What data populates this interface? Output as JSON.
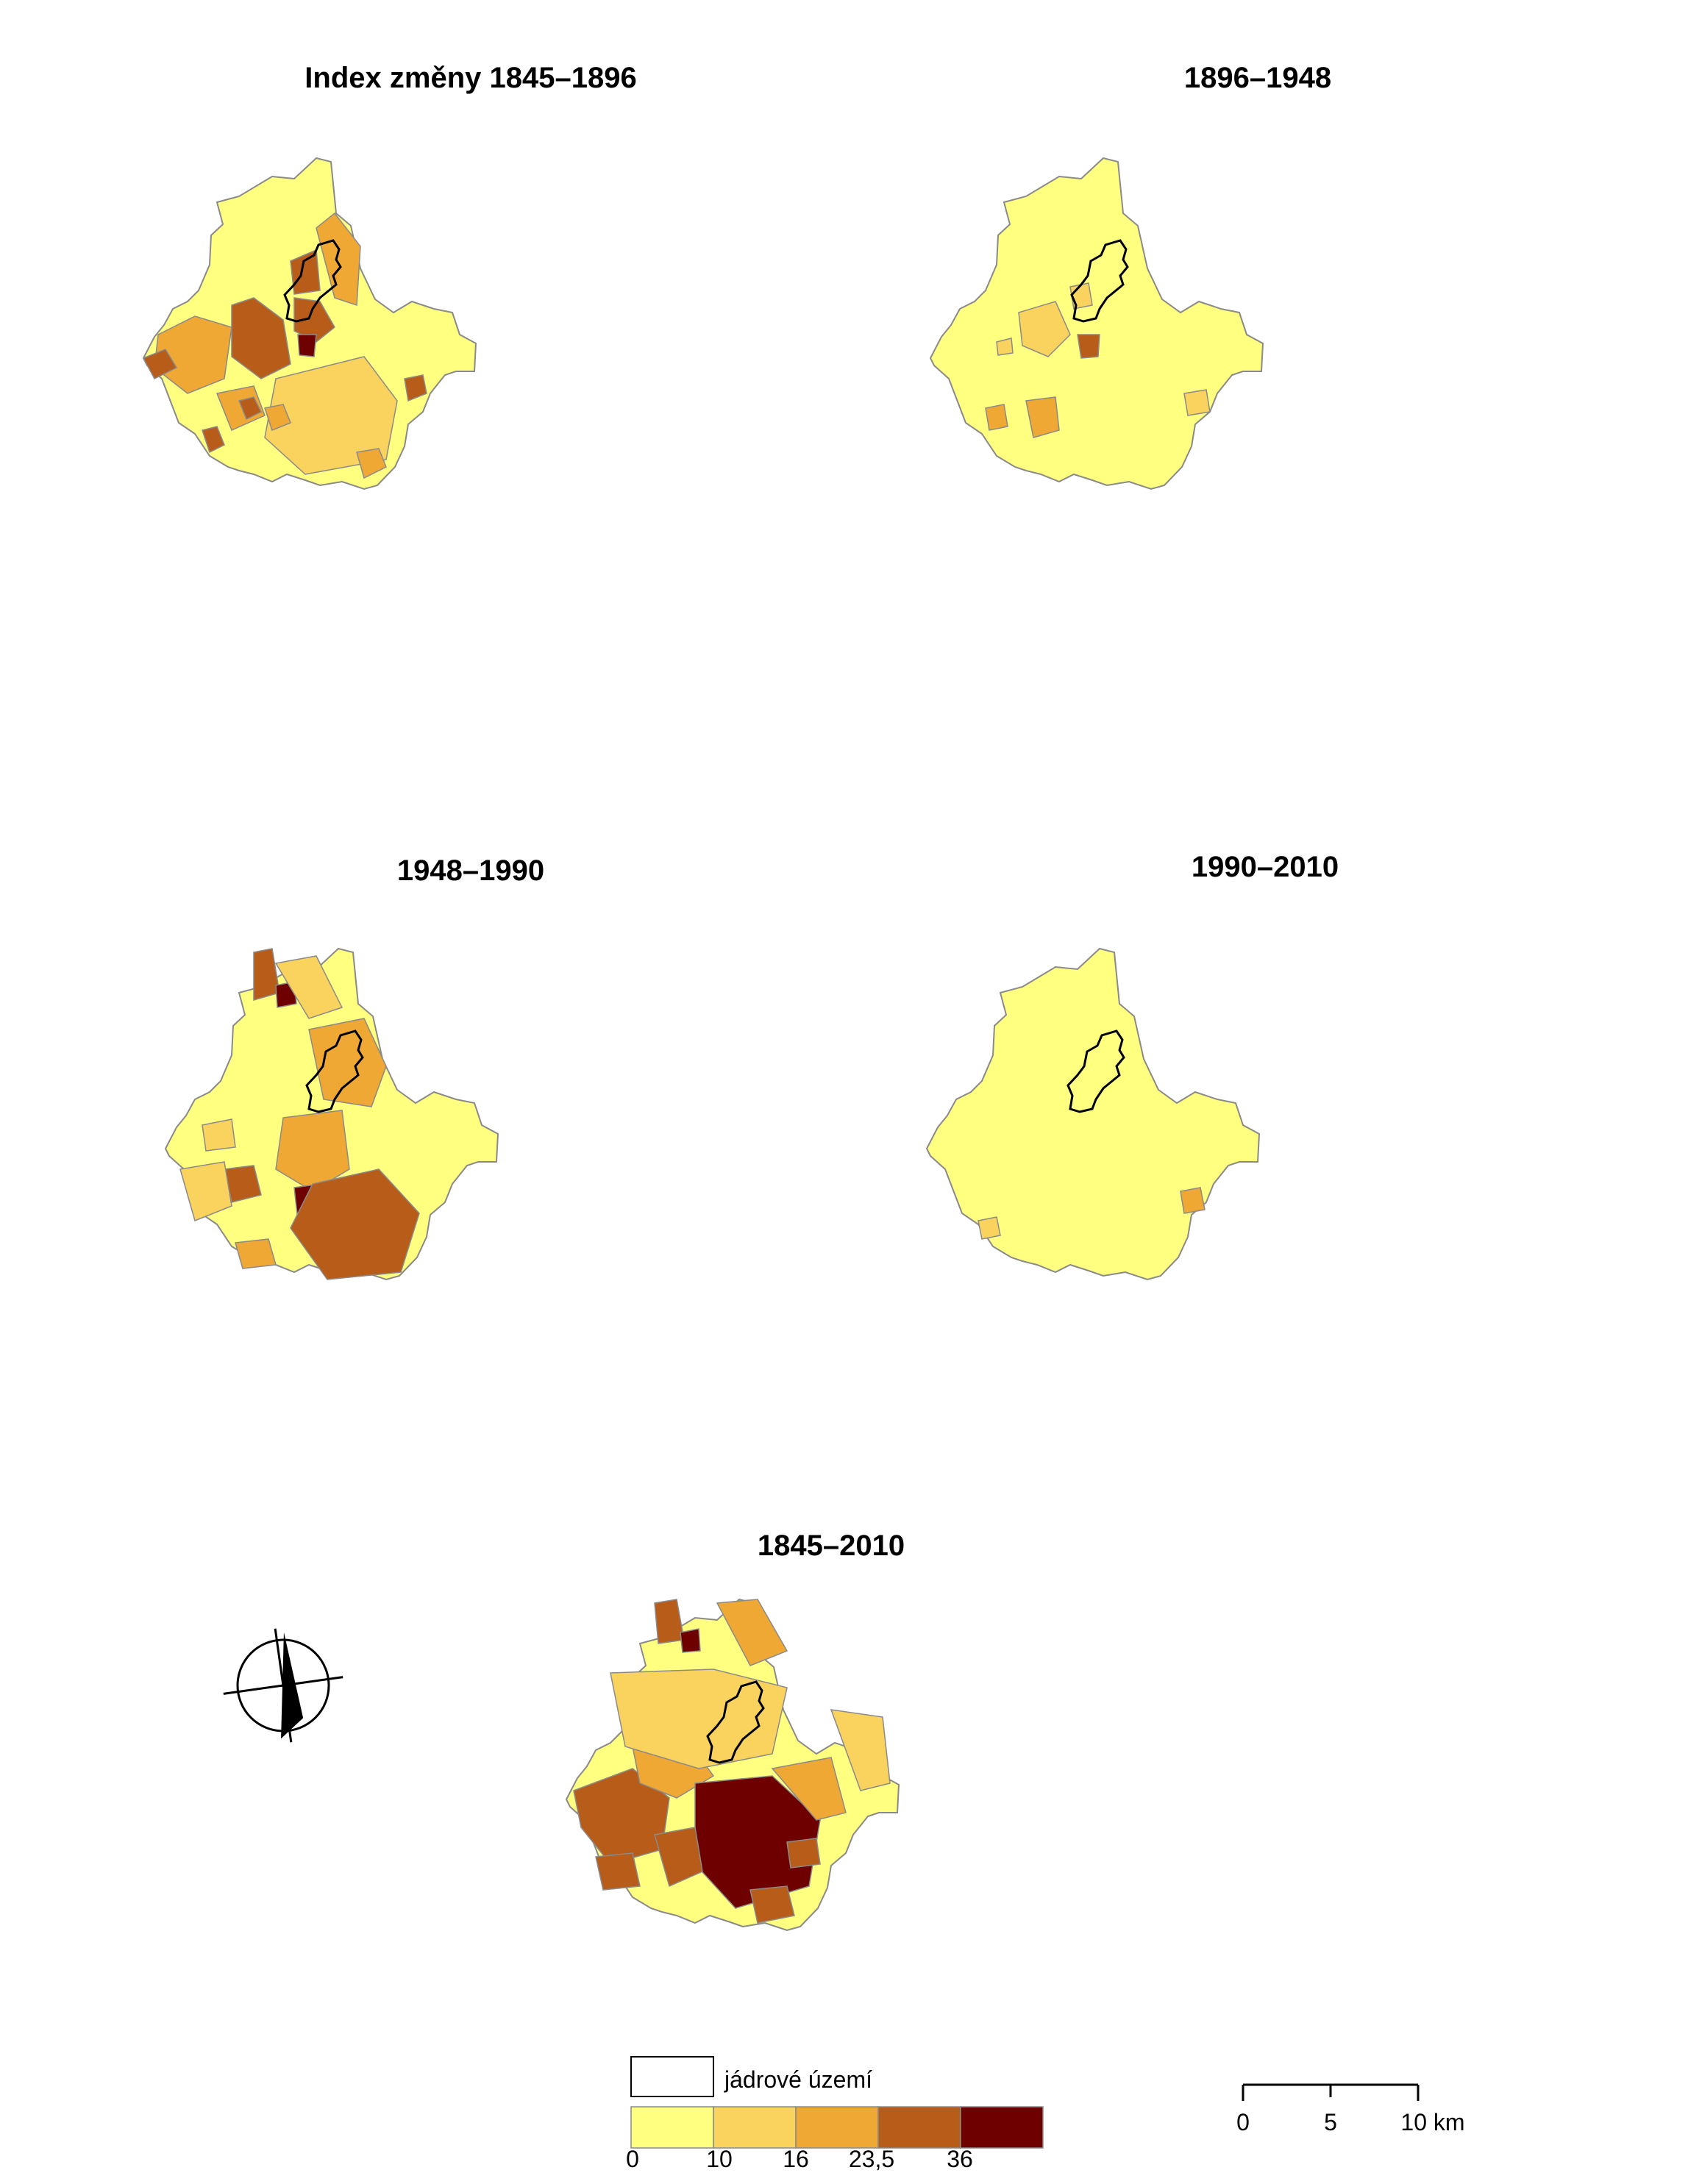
{
  "panels": [
    {
      "id": "p1",
      "title": "Index změny 1845–1896"
    },
    {
      "id": "p2",
      "title": "1896–1948"
    },
    {
      "id": "p3",
      "title": "1948–1990"
    },
    {
      "id": "p4",
      "title": "1990–2010"
    },
    {
      "id": "p5",
      "title": "1845–2010"
    }
  ],
  "legend": {
    "core_label": "jádrové území",
    "classes": [
      {
        "color": "#ffff80"
      },
      {
        "color": "#fad25e"
      },
      {
        "color": "#f0a835"
      },
      {
        "color": "#b85c1a"
      },
      {
        "color": "#6e0000"
      }
    ],
    "breaks": [
      "0",
      "10",
      "16",
      "23,5",
      "36"
    ]
  },
  "scale_bar": {
    "labels": [
      "0",
      "5",
      "10 km"
    ]
  },
  "colors": {
    "border": "#8a8a8a",
    "core_outline": "#000000"
  },
  "icons": {
    "north_arrow": "north-arrow-icon"
  }
}
